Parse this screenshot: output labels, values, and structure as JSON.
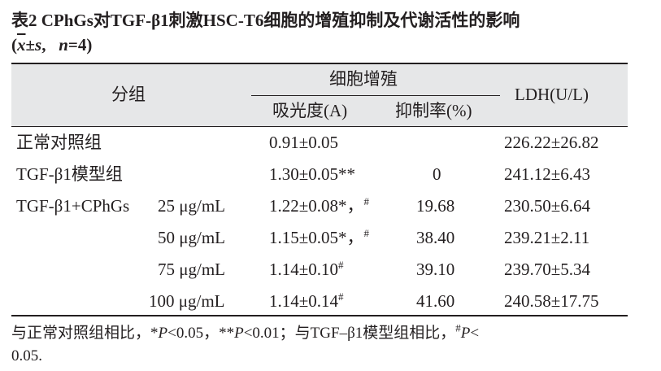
{
  "caption": {
    "line1": "表2  CPhGs对TGF-β1刺激HSC-T6细胞的增殖抑制及代谢活性的影响",
    "open": "(",
    "xbar": "x",
    "pm_s": "±s",
    "comma": ",",
    "n_label": "n",
    "n_value": "=4)"
  },
  "header": {
    "group": "分组",
    "proliferation": "细胞增殖",
    "absorbance": "吸光度(A)",
    "inhibition": "抑制率(%)",
    "ldh": "LDH(U/L)"
  },
  "rows": [
    {
      "group": "正常对照组",
      "dose": "",
      "absorbance": "0.91±0.05",
      "abs_sup": "",
      "inhibition": "",
      "ldh": "226.22±26.82"
    },
    {
      "group": "TGF-β1模型组",
      "dose": "",
      "absorbance": "1.30±0.05**",
      "abs_sup": "",
      "inhibition": "0",
      "ldh": "241.12±6.43"
    },
    {
      "group": "TGF-β1+CPhGs",
      "dose": "25  μg/mL",
      "absorbance": "1.22±0.08*，",
      "abs_sup": "#",
      "inhibition": "19.68",
      "ldh": "230.50±6.64"
    },
    {
      "group": "",
      "dose": "50  μg/mL",
      "absorbance": "1.15±0.05*，",
      "abs_sup": "#",
      "inhibition": "38.40",
      "ldh": "239.21±2.11"
    },
    {
      "group": "",
      "dose": "75  μg/mL",
      "absorbance": "1.14±0.10",
      "abs_sup": "#",
      "inhibition": "39.10",
      "ldh": "239.70±5.34"
    },
    {
      "group": "",
      "dose": "100  μg/mL",
      "absorbance": "1.14±0.14",
      "abs_sup": "#",
      "inhibition": "41.60",
      "ldh": "240.58±17.75"
    }
  ],
  "footnote": {
    "part1": "与正常对照组相比，*",
    "p1": "P",
    "part2": "<0.05，**",
    "p2": "P",
    "part3": "<0.01；与TGF–β1模型组相比，",
    "hash": "#",
    "p3": "P",
    "part4": "<",
    "line2": "0.05."
  }
}
